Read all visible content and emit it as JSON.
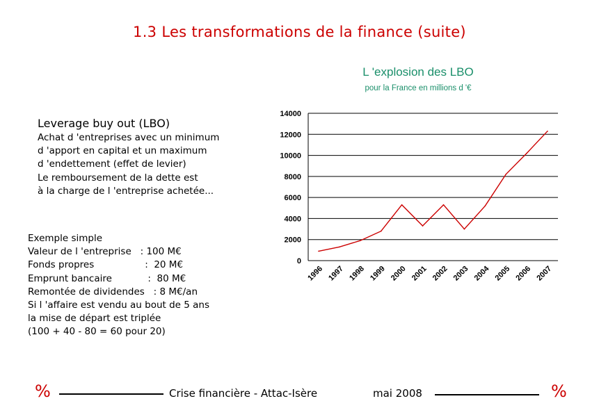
{
  "slide": {
    "title": "1.3  Les transformations de la finance (suite)"
  },
  "lbo": {
    "heading": "Leverage buy out (LBO)",
    "lines": [
      "Achat d 'entreprises avec un minimum",
      "d 'apport en capital et un maximum",
      "d 'endettement (effet de levier)",
      "Le remboursement de la dette est",
      "à la charge de l 'entreprise achetée..."
    ]
  },
  "example": {
    "lines": [
      "Exemple simple",
      "Valeur de l 'entreprise   : 100 M€",
      "Fonds propres                 :  20 M€",
      "Emprunt bancaire            :  80 M€",
      "Remontée de dividendes   : 8 M€/an",
      "Si l 'affaire est vendu au bout de 5 ans",
      "la mise de départ est triplée",
      "(100 + 40 - 80 = 60 pour 20)"
    ]
  },
  "footer": {
    "left_symbol": "%",
    "center_text": "Crise financière - Attac-Isère",
    "date": "mai 2008",
    "right_symbol": "%"
  },
  "colors": {
    "title": "#cc0000",
    "chart_title": "#1a8f6a",
    "series_line": "#cc0000",
    "footer_symbol": "#cc0000"
  },
  "chart_data": {
    "type": "line",
    "title": "L 'explosion des LBO",
    "subtitle": "pour la France en millions d '€",
    "xlabel": "",
    "ylabel": "",
    "ylim": [
      0,
      14000
    ],
    "yticks": [
      "0",
      "2000",
      "4000",
      "6000",
      "8000",
      "10000",
      "12000",
      "14000"
    ],
    "categories": [
      "1996",
      "1997",
      "1998",
      "1999",
      "2000",
      "2001",
      "2002",
      "2003",
      "2004",
      "2005",
      "2006",
      "2007"
    ],
    "series": [
      {
        "values": [
          900,
          1300,
          1900,
          2800,
          5300,
          3300,
          5300,
          3000,
          5200,
          8200,
          10200,
          12300
        ]
      }
    ],
    "grid": true,
    "legend": "none"
  }
}
